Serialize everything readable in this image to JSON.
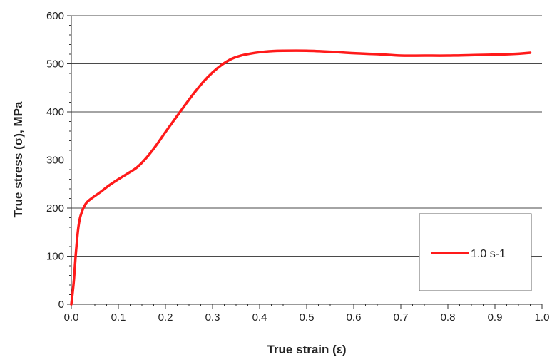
{
  "chart_data": {
    "type": "line",
    "title": "",
    "xlabel": "True strain (ε)",
    "ylabel": "True stress (σ), MPa",
    "xlim": [
      0,
      1.0
    ],
    "ylim": [
      0,
      600
    ],
    "x_ticks": [
      0,
      0.1,
      0.2,
      0.3,
      0.4,
      0.5,
      0.6,
      0.7,
      0.8,
      0.9,
      1.0
    ],
    "x_tick_labels": [
      "0.0",
      "0.1",
      "0.2",
      "0.3",
      "0.4",
      "0.5",
      "0.6",
      "0.7",
      "0.8",
      "0.9",
      "1.0"
    ],
    "y_ticks": [
      0,
      100,
      200,
      300,
      400,
      500,
      600
    ],
    "y_tick_labels": [
      "0",
      "100",
      "200",
      "300",
      "400",
      "500",
      "600"
    ],
    "grid": "horizontal",
    "legend_position": "bottom-right",
    "series": [
      {
        "name": "1.0 s-1",
        "color": "#ff1a1a",
        "x": [
          0.0,
          0.005,
          0.01,
          0.015,
          0.02,
          0.03,
          0.04,
          0.06,
          0.08,
          0.1,
          0.12,
          0.14,
          0.16,
          0.18,
          0.2,
          0.22,
          0.24,
          0.26,
          0.28,
          0.3,
          0.32,
          0.34,
          0.36,
          0.38,
          0.4,
          0.42,
          0.45,
          0.5,
          0.55,
          0.6,
          0.65,
          0.7,
          0.75,
          0.8,
          0.85,
          0.9,
          0.95,
          0.975
        ],
        "y": [
          0,
          45,
          110,
          160,
          185,
          208,
          218,
          232,
          247,
          260,
          272,
          285,
          305,
          330,
          358,
          385,
          412,
          438,
          462,
          482,
          498,
          510,
          517,
          521,
          524,
          526,
          527,
          527,
          525,
          522,
          520,
          517,
          517,
          517,
          518,
          519,
          521,
          523
        ]
      }
    ]
  }
}
